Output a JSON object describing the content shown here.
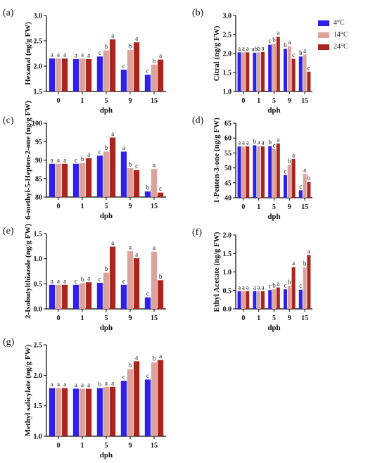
{
  "legend": {
    "items": [
      {
        "label": "4°C",
        "color": "#2f1fe8"
      },
      {
        "label": "14°C",
        "color": "#dba39c"
      },
      {
        "label": "24°C",
        "color": "#a8261d"
      }
    ]
  },
  "chart_data": [
    {
      "panel": "(a)",
      "type": "bar",
      "ylabel": "Hexanal (ng/g FW)",
      "xlabel": "dph",
      "categories": [
        "0",
        "1",
        "5",
        "9",
        "15"
      ],
      "ylim": [
        1.5,
        3.0
      ],
      "yticks": [
        1.5,
        2.0,
        2.5,
        3.0
      ],
      "series": [
        {
          "name": "4°C",
          "values": [
            2.15,
            2.14,
            2.19,
            1.93,
            1.83
          ],
          "labels": [
            "a",
            "a",
            "c",
            "c",
            "c"
          ]
        },
        {
          "name": "14°C",
          "values": [
            2.15,
            2.15,
            2.31,
            2.32,
            2.03
          ],
          "labels": [
            "a",
            "a",
            "b",
            "b",
            "b"
          ]
        },
        {
          "name": "24°C",
          "values": [
            2.15,
            2.14,
            2.53,
            2.47,
            2.13
          ],
          "labels": [
            "a",
            "a",
            "a",
            "a",
            "a"
          ]
        }
      ]
    },
    {
      "panel": "(b)",
      "type": "bar",
      "ylabel": "Citral (ng/g FW)",
      "xlabel": "dph",
      "categories": [
        "0",
        "1",
        "5",
        "9",
        "15"
      ],
      "ylim": [
        1.0,
        3.0
      ],
      "yticks": [
        1.0,
        1.5,
        2.0,
        2.5,
        3.0
      ],
      "series": [
        {
          "name": "4°C",
          "values": [
            2.03,
            2.02,
            2.23,
            2.12,
            1.92
          ],
          "labels": [
            "a",
            "ab",
            "c",
            "b",
            "b"
          ]
        },
        {
          "name": "14°C",
          "values": [
            2.03,
            2.03,
            2.26,
            2.19,
            1.97
          ],
          "labels": [
            "a",
            "b",
            "b",
            "a",
            "a"
          ]
        },
        {
          "name": "24°C",
          "values": [
            2.03,
            2.04,
            2.44,
            1.86,
            1.52
          ],
          "labels": [
            "a",
            "a",
            "a",
            "c",
            "c"
          ]
        }
      ]
    },
    {
      "panel": "(c)",
      "type": "bar",
      "ylabel": "6-methyl-5-Hepten-2-one (ng/g FW)",
      "xlabel": "dph",
      "categories": [
        "0",
        "1",
        "5",
        "9",
        "15"
      ],
      "ylim": [
        80,
        100
      ],
      "yticks": [
        80,
        85,
        90,
        95,
        100
      ],
      "series": [
        {
          "name": "4°C",
          "values": [
            89,
            89,
            91.2,
            92.3,
            81.5
          ],
          "labels": [
            "a",
            "c",
            "c",
            "a",
            "b"
          ]
        },
        {
          "name": "14°C",
          "values": [
            89,
            89.2,
            92.3,
            87.8,
            87.6
          ],
          "labels": [
            "a",
            "b",
            "b",
            "b",
            "a"
          ]
        },
        {
          "name": "24°C",
          "values": [
            89,
            90.5,
            96.1,
            87.3,
            81.2
          ],
          "labels": [
            "a",
            "a",
            "a",
            "c",
            "c"
          ]
        }
      ]
    },
    {
      "panel": "(d)",
      "type": "bar",
      "ylabel": "1-Penten-3-one (ng/g FW)",
      "xlabel": "dph",
      "categories": [
        "0",
        "1",
        "5",
        "9",
        "15"
      ],
      "ylim": [
        40,
        65
      ],
      "yticks": [
        40,
        45,
        50,
        55,
        60,
        65
      ],
      "series": [
        {
          "name": "4°C",
          "values": [
            57.2,
            57.6,
            57.3,
            47.6,
            42.5
          ],
          "labels": [
            "a",
            "b",
            "b",
            "c",
            "c"
          ]
        },
        {
          "name": "14°C",
          "values": [
            57.2,
            57.3,
            56.3,
            51.0,
            48.0
          ],
          "labels": [
            "a",
            "a",
            "c",
            "b",
            "a"
          ]
        },
        {
          "name": "24°C",
          "values": [
            57.2,
            57.2,
            58.2,
            53.0,
            45.3
          ],
          "labels": [
            "a",
            "a",
            "a",
            "a",
            "b"
          ]
        }
      ]
    },
    {
      "panel": "(e)",
      "type": "bar",
      "ylabel": "2-Isobutylthiazole (ng/g FW)",
      "xlabel": "dph",
      "categories": [
        "0",
        "1",
        "5",
        "9",
        "15"
      ],
      "ylim": [
        0.0,
        1.5
      ],
      "yticks": [
        0.0,
        0.5,
        1.0,
        1.5
      ],
      "series": [
        {
          "name": "4°C",
          "values": [
            0.48,
            0.48,
            0.52,
            0.48,
            0.23
          ],
          "labels": [
            "a",
            "c",
            "c",
            "c",
            "c"
          ]
        },
        {
          "name": "14°C",
          "values": [
            0.48,
            0.51,
            0.72,
            1.15,
            1.14
          ],
          "labels": [
            "a",
            "b",
            "b",
            "a",
            "a"
          ]
        },
        {
          "name": "24°C",
          "values": [
            0.48,
            0.53,
            1.24,
            1.01,
            0.57
          ],
          "labels": [
            "a",
            "a",
            "a",
            "a",
            "b"
          ]
        }
      ]
    },
    {
      "panel": "(f)",
      "type": "bar",
      "ylabel": "Ethyl Acetate (ng/g FW)",
      "xlabel": "dph",
      "categories": [
        "0",
        "1",
        "5",
        "9",
        "15"
      ],
      "ylim": [
        0.0,
        2.0
      ],
      "yticks": [
        0.0,
        0.5,
        1.0,
        1.5,
        2.0
      ],
      "series": [
        {
          "name": "4°C",
          "values": [
            0.48,
            0.48,
            0.51,
            0.53,
            0.52
          ],
          "labels": [
            "a",
            "a",
            "c",
            "c",
            "c"
          ]
        },
        {
          "name": "14°C",
          "values": [
            0.48,
            0.48,
            0.53,
            0.62,
            1.12
          ],
          "labels": [
            "a",
            "a",
            "b",
            "b",
            "b"
          ]
        },
        {
          "name": "24°C",
          "values": [
            0.48,
            0.48,
            0.58,
            1.13,
            1.46
          ],
          "labels": [
            "a",
            "a",
            "a",
            "a",
            "a"
          ]
        }
      ]
    },
    {
      "panel": "(g)",
      "type": "bar",
      "ylabel": "Methyl salicylate (ng/g FW)",
      "xlabel": "dph",
      "categories": [
        "0",
        "1",
        "5",
        "9",
        "15"
      ],
      "ylim": [
        1.0,
        2.5
      ],
      "yticks": [
        1.0,
        1.5,
        2.0,
        2.5
      ],
      "series": [
        {
          "name": "4°C",
          "values": [
            1.79,
            1.78,
            1.79,
            1.91,
            1.93
          ],
          "labels": [
            "a",
            "a",
            "b",
            "c",
            "c"
          ]
        },
        {
          "name": "14°C",
          "values": [
            1.79,
            1.78,
            1.81,
            2.1,
            2.21
          ],
          "labels": [
            "a",
            "a",
            "a",
            "b",
            "b"
          ]
        },
        {
          "name": "24°C",
          "values": [
            1.79,
            1.78,
            1.81,
            2.23,
            2.25
          ],
          "labels": [
            "a",
            "a",
            "a",
            "a",
            "a"
          ]
        }
      ]
    }
  ]
}
